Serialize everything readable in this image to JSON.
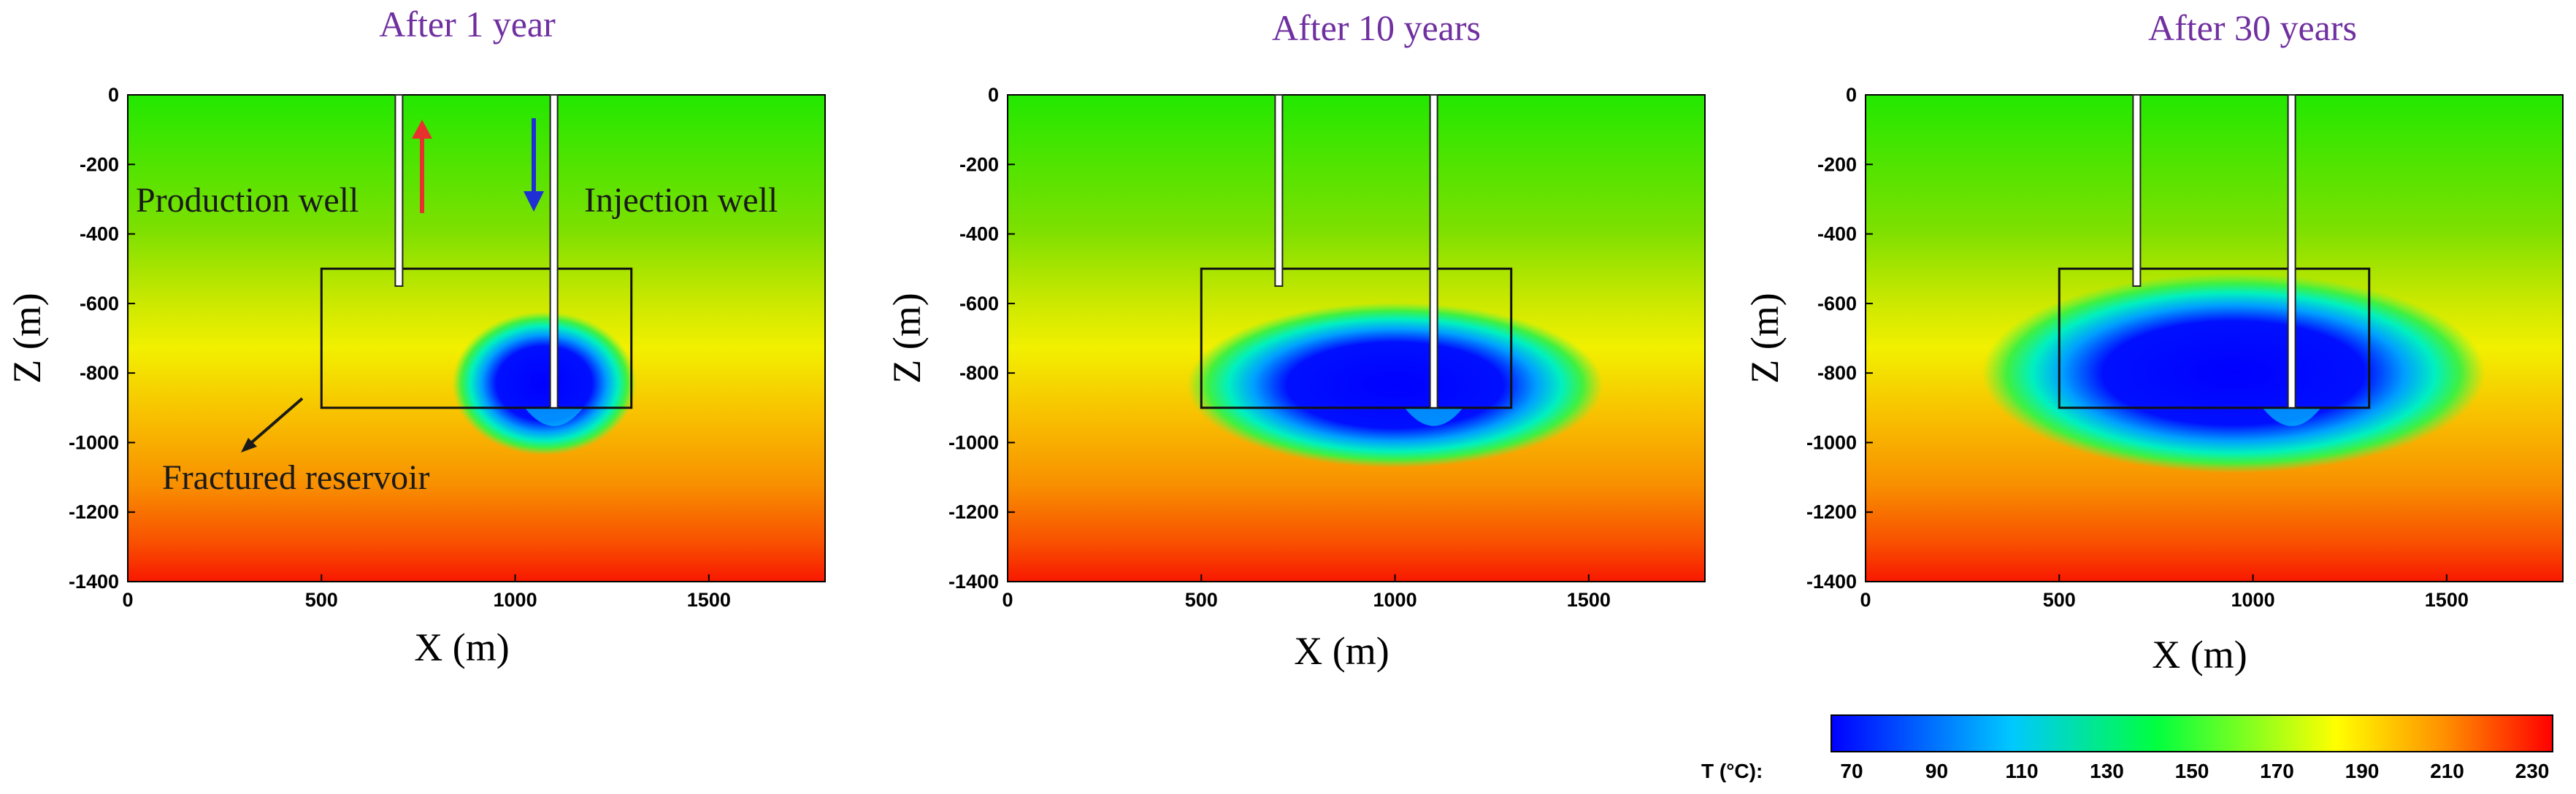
{
  "chart_data": [
    {
      "type": "heatmap",
      "title": "After 1 year",
      "xlabel": "X (m)",
      "ylabel": "Z (m)",
      "xlim": [
        0,
        1800
      ],
      "ylim": [
        -1400,
        0
      ],
      "x_ticks": [
        0,
        500,
        1000,
        1500
      ],
      "y_ticks": [
        0,
        -200,
        -400,
        -600,
        -800,
        -1000,
        -1200,
        -1400
      ],
      "reservoir_box": {
        "x": [
          500,
          1300
        ],
        "z": [
          -900,
          -500
        ]
      },
      "wells": [
        {
          "name": "Production well",
          "x": 700,
          "bottom_z": -550
        },
        {
          "name": "Injection well",
          "x": 1100,
          "bottom_z": -900
        }
      ],
      "cold_plume": {
        "center_x": 1075,
        "center_z": -830,
        "radius_x": 190,
        "radius_z": 165
      },
      "annotations": [
        "Production well",
        "Injection well",
        "Fractured reservoir"
      ]
    },
    {
      "type": "heatmap",
      "title": "After 10 years",
      "xlabel": "X (m)",
      "ylabel": "Z (m)",
      "xlim": [
        0,
        1800
      ],
      "ylim": [
        -1400,
        0
      ],
      "x_ticks": [
        0,
        500,
        1000,
        1500
      ],
      "y_ticks": [
        0,
        -200,
        -400,
        -600,
        -800,
        -1000,
        -1200,
        -1400
      ],
      "reservoir_box": {
        "x": [
          500,
          1300
        ],
        "z": [
          -900,
          -500
        ]
      },
      "wells": [
        {
          "x": 700,
          "bottom_z": -550
        },
        {
          "x": 1100,
          "bottom_z": -900
        }
      ],
      "cold_plume": {
        "center_x": 1000,
        "center_z": -835,
        "radius_x": 430,
        "radius_z": 190
      },
      "annotations": []
    },
    {
      "type": "heatmap",
      "title": "After 30 years",
      "xlabel": "X (m)",
      "ylabel": "Z (m)",
      "xlim": [
        0,
        1800
      ],
      "ylim": [
        -1400,
        0
      ],
      "x_ticks": [
        0,
        500,
        1000,
        1500
      ],
      "y_ticks": [
        0,
        -200,
        -400,
        -600,
        -800,
        -1000,
        -1200,
        -1400
      ],
      "reservoir_box": {
        "x": [
          500,
          1300
        ],
        "z": [
          -900,
          -500
        ]
      },
      "wells": [
        {
          "x": 700,
          "bottom_z": -550
        },
        {
          "x": 1100,
          "bottom_z": -900
        }
      ],
      "cold_plume": {
        "center_x": 950,
        "center_z": -800,
        "radius_x": 520,
        "radius_z": 230
      },
      "annotations": []
    }
  ],
  "colorbar": {
    "label": "T (°C):",
    "ticks": [
      70,
      90,
      110,
      130,
      150,
      170,
      190,
      210,
      230
    ],
    "range": [
      70,
      230
    ],
    "colors": [
      "#0000ff",
      "#00c8ff",
      "#00ff40",
      "#ffff00",
      "#ff9000",
      "#ff0000"
    ]
  },
  "colors": {
    "title": "#7030a0",
    "production_arrow": "#e8312f",
    "injection_arrow": "#1f2fd6"
  }
}
